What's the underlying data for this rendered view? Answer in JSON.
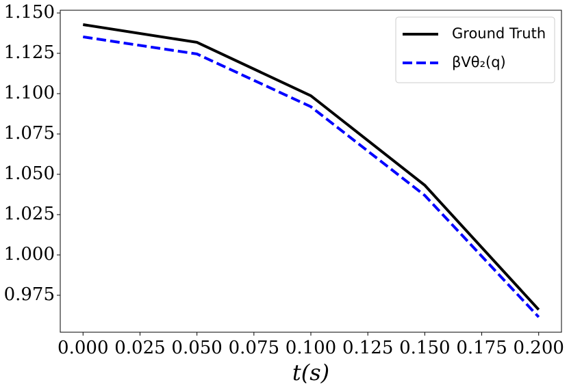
{
  "chart_data": {
    "type": "line",
    "x_label": "t(s)",
    "x": [
      0.0,
      0.05,
      0.1,
      0.15,
      0.2
    ],
    "series": [
      {
        "name": "Ground Truth",
        "color": "#000000",
        "dash": "solid",
        "values": [
          1.1428,
          1.1318,
          1.0987,
          1.0432,
          0.9661
        ]
      },
      {
        "name": "βVθ₂(q)",
        "color": "#0000ff",
        "dash": "dashed",
        "values": [
          1.1352,
          1.1246,
          1.0919,
          1.0369,
          0.9615
        ]
      }
    ],
    "xlim": [
      -0.01,
      0.21
    ],
    "ylim": [
      0.9521,
      1.1517
    ],
    "xticks": [
      {
        "value": 0.0,
        "label": "0.000"
      },
      {
        "value": 0.025,
        "label": "0.025"
      },
      {
        "value": 0.05,
        "label": "0.050"
      },
      {
        "value": 0.075,
        "label": "0.075"
      },
      {
        "value": 0.1,
        "label": "0.100"
      },
      {
        "value": 0.125,
        "label": "0.125"
      },
      {
        "value": 0.15,
        "label": "0.150"
      },
      {
        "value": 0.175,
        "label": "0.175"
      },
      {
        "value": 0.2,
        "label": "0.200"
      }
    ],
    "yticks": [
      {
        "value": 0.975,
        "label": "0.975"
      },
      {
        "value": 1.0,
        "label": "1.000"
      },
      {
        "value": 1.025,
        "label": "1.025"
      },
      {
        "value": 1.05,
        "label": "1.050"
      },
      {
        "value": 1.075,
        "label": "1.075"
      },
      {
        "value": 1.1,
        "label": "1.100"
      },
      {
        "value": 1.125,
        "label": "1.125"
      },
      {
        "value": 1.15,
        "label": "1.150"
      }
    ],
    "legend": "upper right",
    "grid": false
  }
}
